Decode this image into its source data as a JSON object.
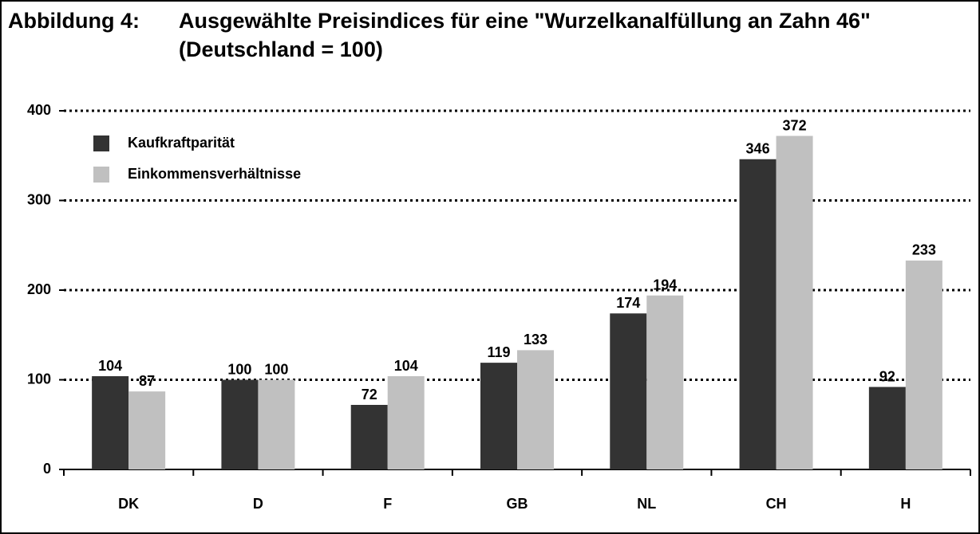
{
  "chart_data": {
    "type": "bar",
    "title_label": "Abbildung 4:",
    "title": "Ausgewählte Preisindices für eine \"Wurzelkanalfüllung an Zahn 46\" (Deutschland = 100)",
    "categories": [
      "DK",
      "D",
      "F",
      "GB",
      "NL",
      "CH",
      "H"
    ],
    "series": [
      {
        "name": "Kaufkraftparität",
        "color": "#333333",
        "values": [
          104,
          100,
          72,
          119,
          174,
          346,
          92
        ]
      },
      {
        "name": "Einkommensverhältnisse",
        "color": "#c0c0c0",
        "values": [
          87,
          100,
          104,
          133,
          194,
          372,
          233
        ]
      }
    ],
    "ylim": [
      0,
      400
    ],
    "yticks": [
      0,
      100,
      200,
      300,
      400
    ],
    "grid": true,
    "legend": "top-left"
  }
}
